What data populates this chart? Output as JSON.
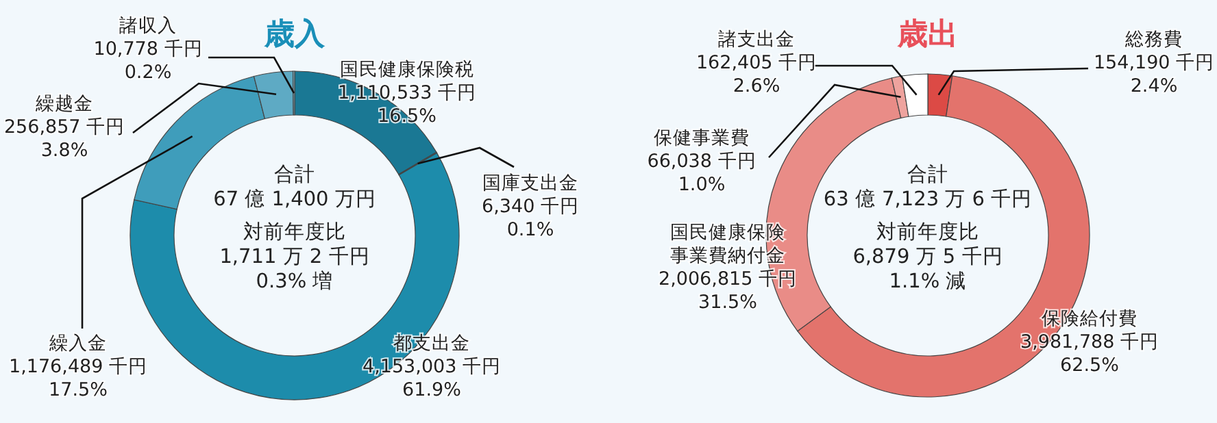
{
  "chart_data": [
    {
      "type": "donut",
      "title": "歳入",
      "categories": [
        "国民健康保険税",
        "国庫支出金",
        "都支出金",
        "繰入金",
        "繰越金",
        "諸収入"
      ],
      "values": [
        1110533,
        6340,
        4153003,
        1176489,
        256857,
        10778
      ],
      "colors": [
        "#1a7894",
        "#1f86a3",
        "#1d8cab",
        "#3f9dbb",
        "#5eaac4",
        "#80bcd2"
      ],
      "value_labels": [
        "1,110,533 千円\n16.5%",
        "6,340 千円\n0.1%",
        "4,153,003 千円\n61.9%",
        "1,176,489 千円\n17.5%",
        "256,857 千円\n3.8%",
        "10,778 千円\n0.2%"
      ],
      "annotations": [
        "合計",
        "67 億 1,400 万円",
        "対前年度比",
        "1,711 万 2 千円",
        "0.3% 増"
      ]
    },
    {
      "type": "donut",
      "title": "歳出",
      "categories": [
        "総務費",
        "保険給付費",
        "国民健康保険事業費納付金",
        "保健事業費",
        "諸支出金"
      ],
      "values": [
        154190,
        3981788,
        2006815,
        66038,
        162405
      ],
      "colors": [
        "#dc4a45",
        "#e3736c",
        "#e98c87",
        "#eea39e",
        "#ffffff"
      ],
      "value_labels": [
        "154,190 千円\n2.4%",
        "3,981,788 千円\n62.5%",
        "2,006,815 千円\n31.5%",
        "66,038 千円\n1.0%",
        "162,405 千円\n2.6%"
      ],
      "annotations": [
        "合計",
        "63 億 7,123 万 6 千円",
        "対前年度比",
        "6,879 万 5 千円",
        "1.1% 減"
      ]
    }
  ]
}
